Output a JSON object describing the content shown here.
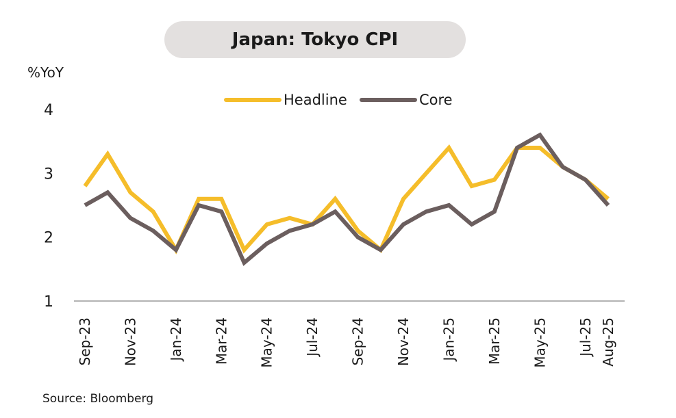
{
  "header": {
    "title": "Japan: Tokyo CPI",
    "y_unit": "%YoY"
  },
  "footer": {
    "source": "Source: Bloomberg"
  },
  "chart_data": {
    "type": "line",
    "title": "Japan: Tokyo CPI",
    "ylabel": "%YoY",
    "xlabel": "",
    "ylim": [
      1,
      4
    ],
    "yticks": [
      1,
      2,
      3,
      4
    ],
    "grid": false,
    "legend_position": "top-center",
    "x": [
      "Sep-23",
      "Oct-23",
      "Nov-23",
      "Dec-23",
      "Jan-24",
      "Feb-24",
      "Mar-24",
      "Apr-24",
      "May-24",
      "Jun-24",
      "Jul-24",
      "Aug-24",
      "Sep-24",
      "Oct-24",
      "Nov-24",
      "Dec-24",
      "Jan-25",
      "Feb-25",
      "Mar-25",
      "Apr-25",
      "May-25",
      "Jun-25",
      "Jul-25",
      "Aug-25"
    ],
    "x_tick_labels": [
      "Sep-23",
      "Nov-23",
      "Jan-24",
      "Mar-24",
      "May-24",
      "Jul-24",
      "Sep-24",
      "Nov-24",
      "Jan-25",
      "Mar-25",
      "May-25",
      "Jul-25",
      "Aug-25"
    ],
    "series": [
      {
        "name": "Headline",
        "color": "#f5bd2a",
        "values": [
          2.8,
          3.3,
          2.7,
          2.4,
          1.8,
          2.6,
          2.6,
          1.8,
          2.2,
          2.3,
          2.2,
          2.6,
          2.1,
          1.8,
          2.6,
          3.0,
          3.4,
          2.8,
          2.9,
          3.4,
          3.4,
          3.1,
          2.9,
          2.6
        ]
      },
      {
        "name": "Core",
        "color": "#6b5e5e",
        "values": [
          2.5,
          2.7,
          2.3,
          2.1,
          1.8,
          2.5,
          2.4,
          1.6,
          1.9,
          2.1,
          2.2,
          2.4,
          2.0,
          1.8,
          2.2,
          2.4,
          2.5,
          2.2,
          2.4,
          3.4,
          3.6,
          3.1,
          2.9,
          2.5
        ]
      }
    ]
  }
}
